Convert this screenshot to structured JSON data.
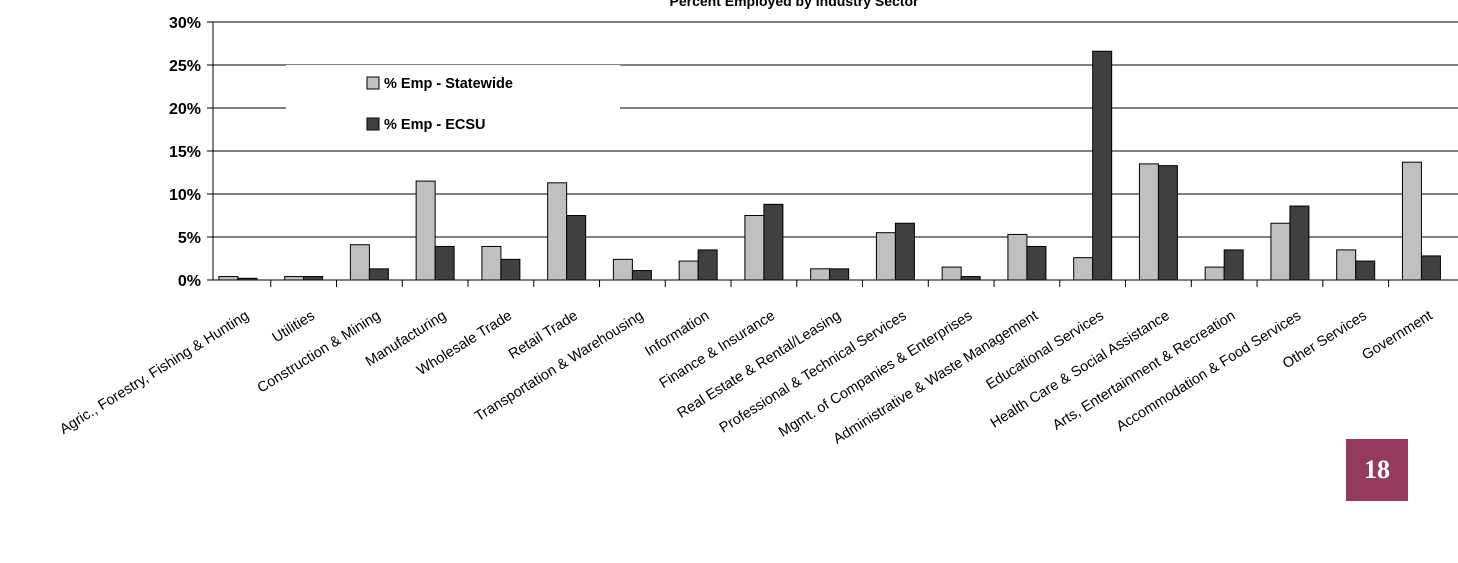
{
  "page_number": "18",
  "chart_data": {
    "type": "bar",
    "title": "Percent Employed by Industry Sector",
    "xlabel": "",
    "ylabel": "",
    "ylim": [
      0,
      30
    ],
    "yticks": [
      "0%",
      "5%",
      "10%",
      "15%",
      "20%",
      "25%",
      "30%"
    ],
    "grid": true,
    "legend_position": "top-left",
    "categories": [
      "Agric., Forestry, Fishing & Hunting",
      "Utilities",
      "Construction & Mining",
      "Manufacturing",
      "Wholesale Trade",
      "Retail Trade",
      "Transportation & Warehousing",
      "Information",
      "Finance & Insurance",
      "Real Estate & Rental/Leasing",
      "Professional & Technical Services",
      "Mgmt. of Companies & Enterprises",
      "Administrative & Waste Management",
      "Educational Services",
      "Health Care & Social Assistance",
      "Arts, Entertainment & Recreation",
      "Accommodation & Food Services",
      "Other Services",
      "Government"
    ],
    "series": [
      {
        "name": "% Emp - Statewide",
        "color": "#c0c0c0",
        "values": [
          0.4,
          0.4,
          4.1,
          11.5,
          3.9,
          11.3,
          2.4,
          2.2,
          7.5,
          1.3,
          5.5,
          1.5,
          5.3,
          2.6,
          13.5,
          1.5,
          6.6,
          3.5,
          13.7
        ]
      },
      {
        "name": "% Emp - ECSU",
        "color": "#404040",
        "values": [
          0.2,
          0.4,
          1.3,
          3.9,
          2.4,
          7.5,
          1.1,
          3.5,
          8.8,
          1.3,
          6.6,
          0.4,
          3.9,
          26.6,
          13.3,
          3.5,
          8.6,
          2.2,
          2.8
        ]
      }
    ]
  }
}
